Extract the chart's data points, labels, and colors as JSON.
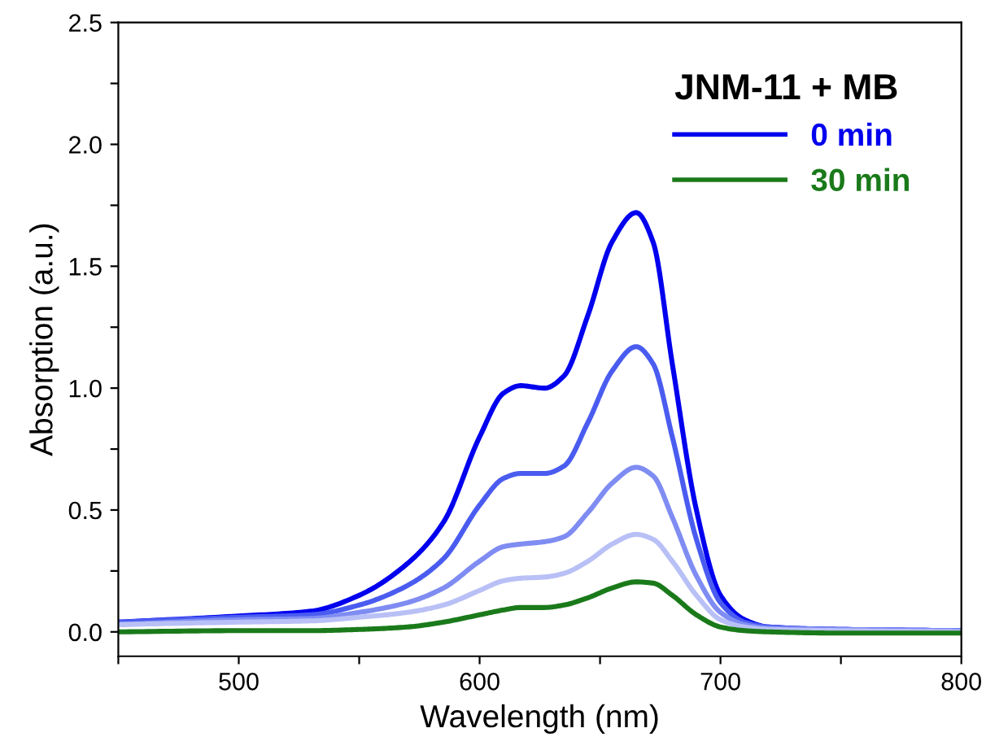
{
  "chart_data": {
    "type": "line",
    "xlabel": "Wavelength (nm)",
    "ylabel": "Absorption (a.u.)",
    "legend_title": "JNM-11 + MB",
    "x": [
      450,
      500,
      530,
      550,
      570,
      585,
      600,
      610,
      617,
      627,
      635,
      645,
      655,
      665,
      672,
      680,
      690,
      700,
      710,
      720,
      750,
      800
    ],
    "series": [
      {
        "name": "0 min",
        "color": "#0000ee",
        "values": [
          0.04,
          0.065,
          0.085,
          0.15,
          0.28,
          0.45,
          0.8,
          0.98,
          1.01,
          1.0,
          1.05,
          1.3,
          1.6,
          1.72,
          1.6,
          1.1,
          0.5,
          0.15,
          0.05,
          0.02,
          0.01,
          0.005
        ]
      },
      {
        "color": "#4a5cf0",
        "values": [
          0.04,
          0.06,
          0.07,
          0.11,
          0.19,
          0.3,
          0.52,
          0.63,
          0.65,
          0.65,
          0.68,
          0.86,
          1.07,
          1.17,
          1.1,
          0.8,
          0.38,
          0.12,
          0.04,
          0.02,
          0.01,
          0.005
        ]
      },
      {
        "color": "#7f8cf2",
        "values": [
          0.03,
          0.05,
          0.055,
          0.08,
          0.12,
          0.18,
          0.29,
          0.35,
          0.36,
          0.37,
          0.39,
          0.49,
          0.61,
          0.675,
          0.64,
          0.47,
          0.23,
          0.08,
          0.03,
          0.015,
          0.01,
          0.005
        ]
      },
      {
        "color": "#b8c0f6",
        "values": [
          0.03,
          0.04,
          0.045,
          0.06,
          0.08,
          0.11,
          0.17,
          0.21,
          0.22,
          0.225,
          0.24,
          0.29,
          0.36,
          0.4,
          0.38,
          0.29,
          0.15,
          0.05,
          0.02,
          0.01,
          0.005,
          0.0
        ]
      },
      {
        "name": "30 min",
        "color": "#1a7a1a",
        "values": [
          0.0,
          0.005,
          0.005,
          0.01,
          0.02,
          0.04,
          0.07,
          0.09,
          0.1,
          0.1,
          0.11,
          0.14,
          0.18,
          0.205,
          0.2,
          0.15,
          0.07,
          0.02,
          0.005,
          0.0,
          -0.005,
          -0.005
        ]
      }
    ],
    "xlim": [
      450,
      800
    ],
    "xticks": [
      {
        "value": 450,
        "label": null
      },
      500,
      {
        "value": 550,
        "label": null
      },
      600,
      {
        "value": 650,
        "label": null
      },
      700,
      {
        "value": 750,
        "label": null
      },
      800
    ],
    "ylim": [
      -0.1,
      2.5
    ],
    "yticks": [
      {
        "value": 0,
        "label": "0.0"
      },
      {
        "value": 0.25,
        "label": null
      },
      0.5,
      {
        "value": 0.75,
        "label": null
      },
      {
        "value": 1,
        "label": "1.0"
      },
      {
        "value": 1.25,
        "label": null
      },
      1.5,
      {
        "value": 1.75,
        "label": null
      },
      {
        "value": 2,
        "label": "2.0"
      },
      {
        "value": 2.25,
        "label": null
      },
      2.5
    ],
    "grid": false,
    "legend": "top right",
    "marker": "none",
    "line_style": "solid"
  }
}
